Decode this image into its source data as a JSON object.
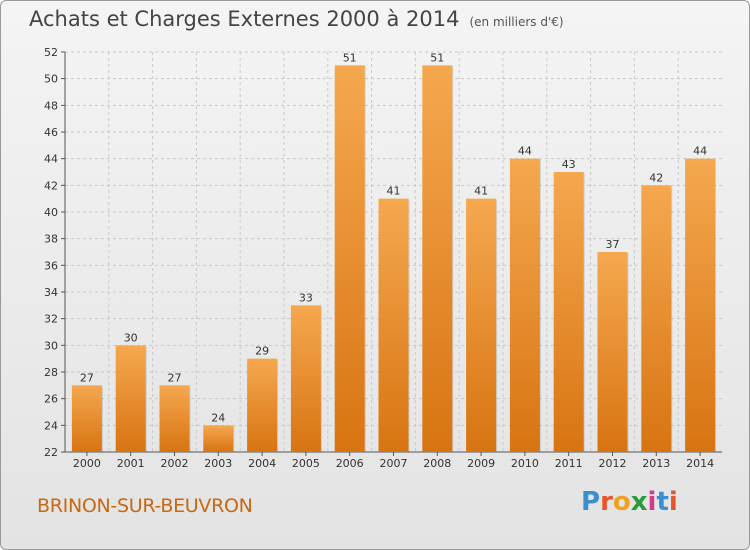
{
  "title": "Achats et Charges Externes 2000 à 2014",
  "unit_note": "(en milliers d'€)",
  "location": "BRINON-SUR-BEUVRON",
  "brand": "Proxiti",
  "colors": {
    "bar_top": "#f5a84f",
    "bar_bottom": "#d87412",
    "city_text": "#c8680f",
    "grid": "#c9c9c9"
  },
  "chart_data": {
    "type": "bar",
    "title": "Achats et Charges Externes 2000 à 2014",
    "subtitle": "(en milliers d'€)",
    "xlabel": "",
    "ylabel": "",
    "categories": [
      "2000",
      "2001",
      "2002",
      "2003",
      "2004",
      "2005",
      "2006",
      "2007",
      "2008",
      "2009",
      "2010",
      "2011",
      "2012",
      "2013",
      "2014"
    ],
    "values": [
      27,
      30,
      27,
      24,
      29,
      33,
      51,
      41,
      51,
      41,
      44,
      43,
      37,
      42,
      44
    ],
    "ylim": [
      22,
      52
    ],
    "yticks": [
      22,
      24,
      26,
      28,
      30,
      32,
      34,
      36,
      38,
      40,
      42,
      44,
      46,
      48,
      50,
      52
    ],
    "grid": true,
    "legend": "none"
  }
}
